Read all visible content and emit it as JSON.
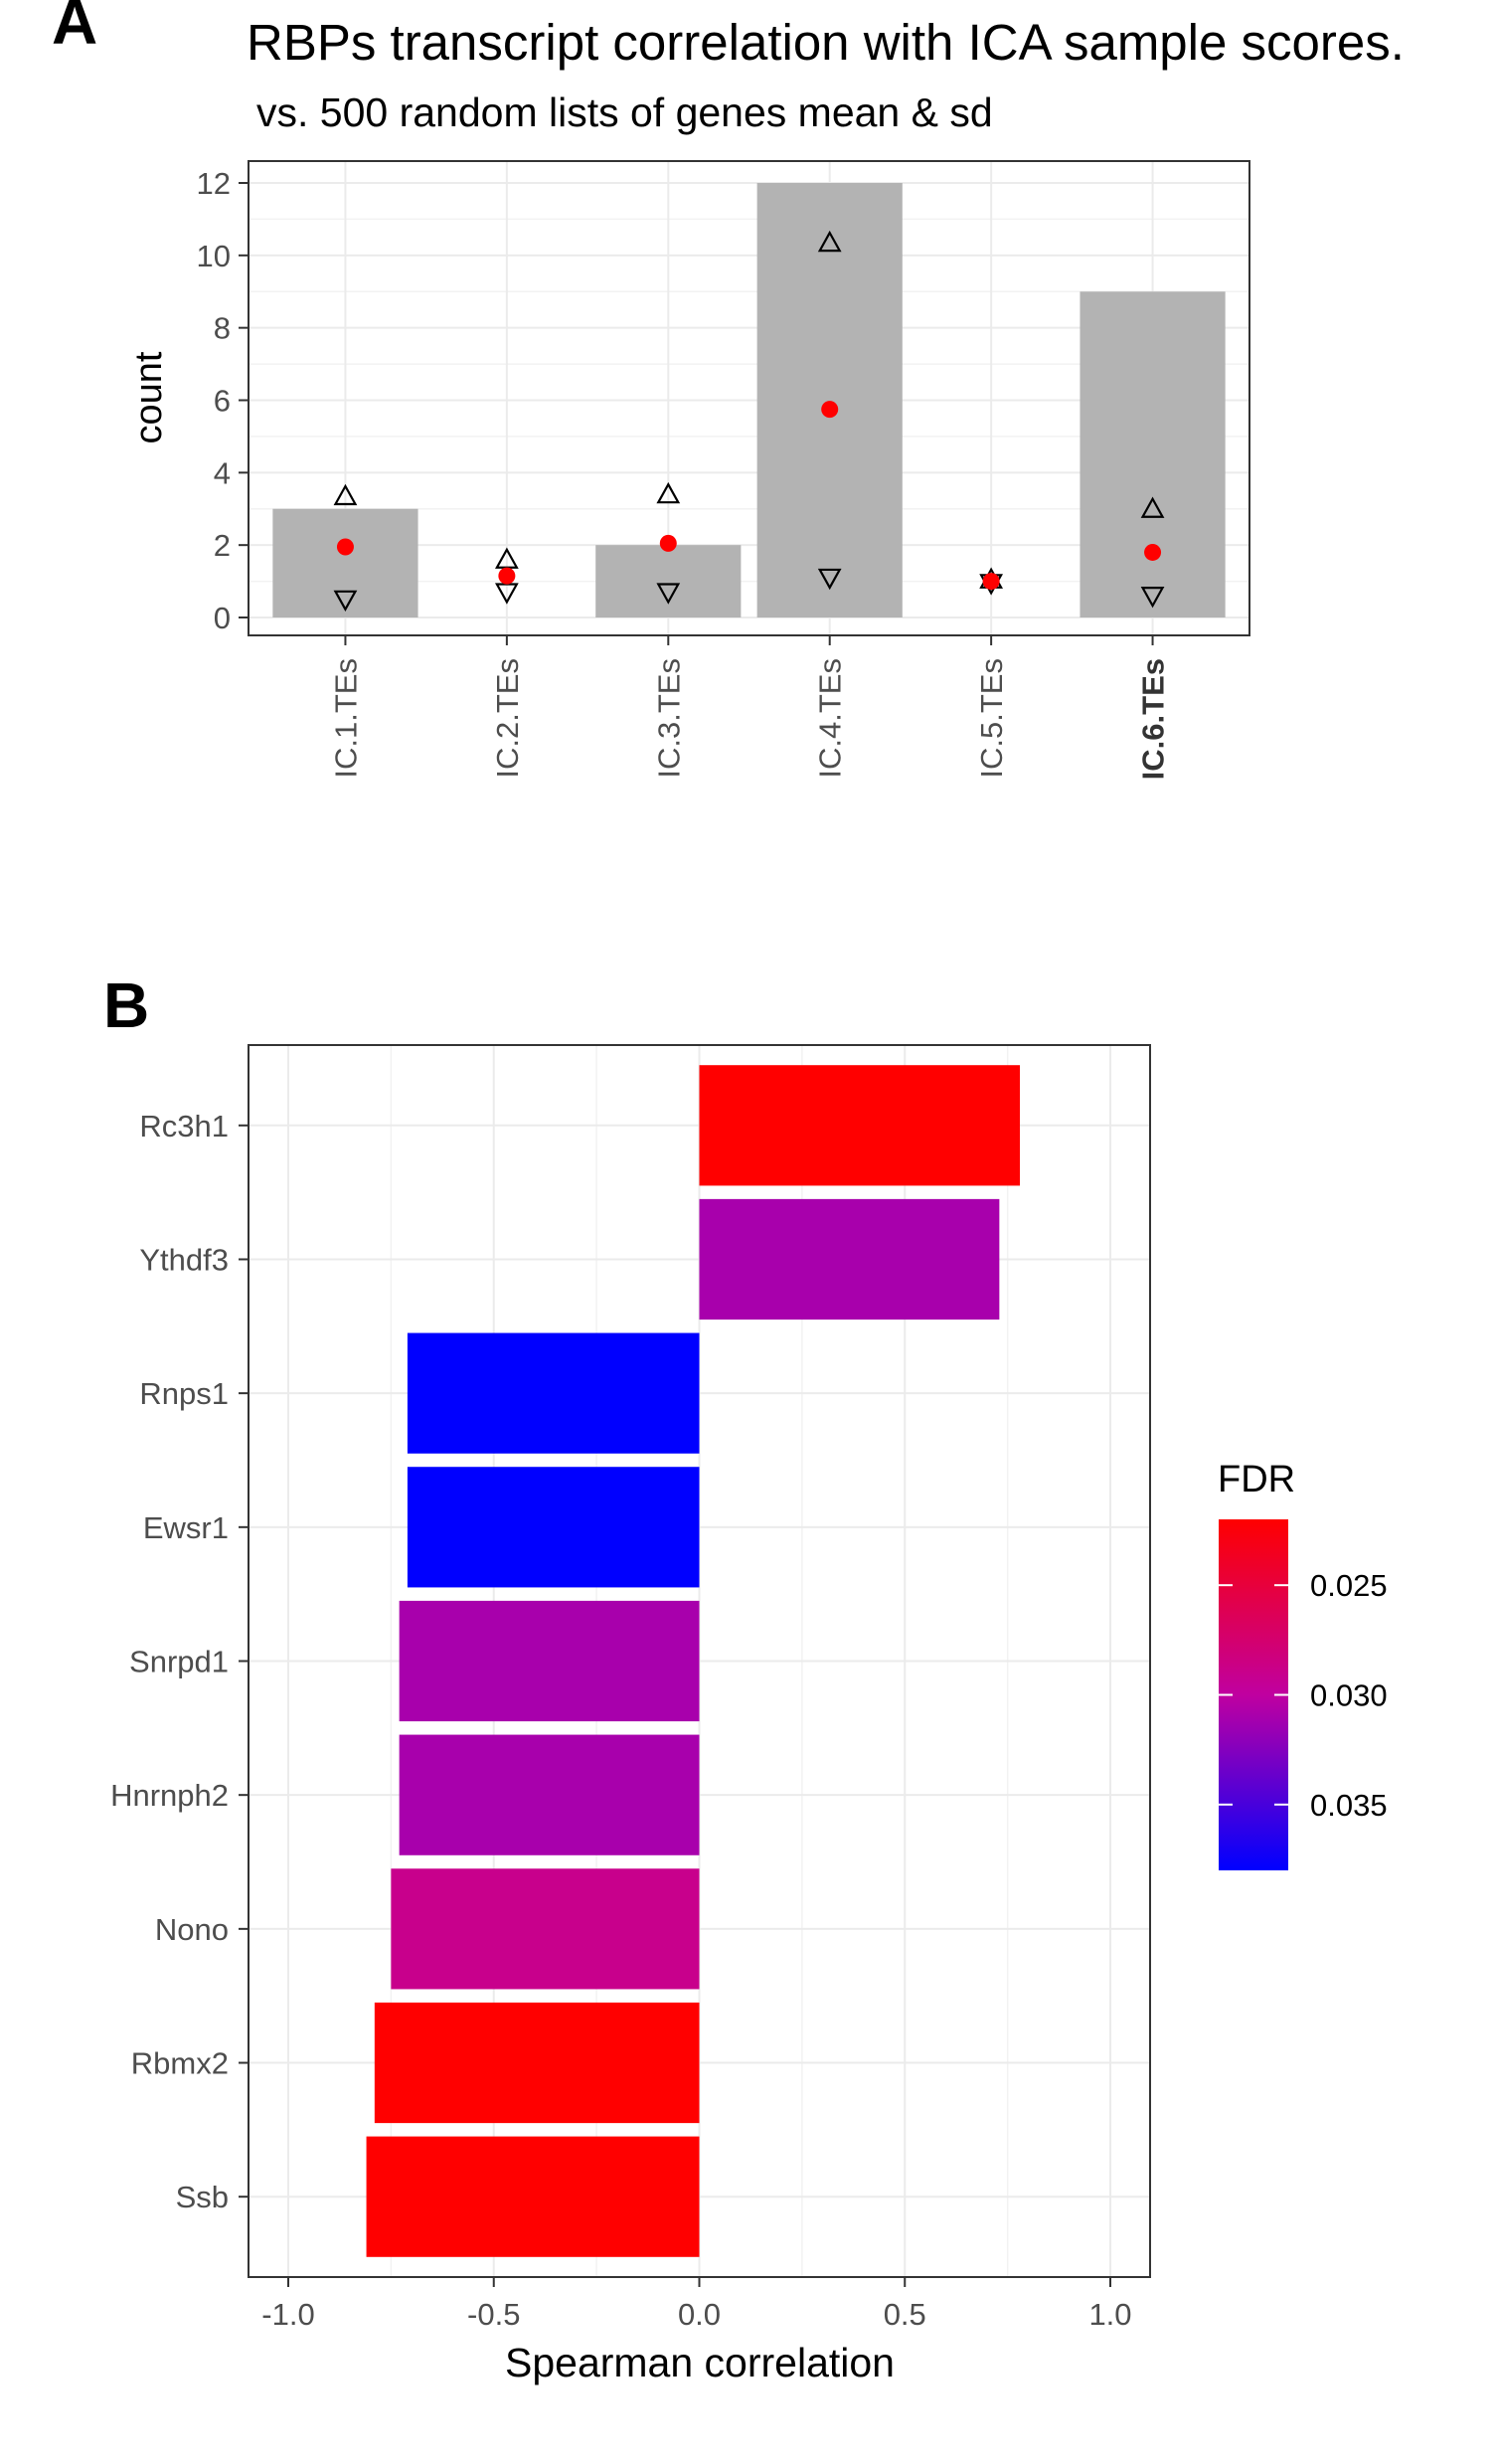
{
  "chart_data": [
    {
      "panel_label": "A",
      "type": "bar",
      "title": "RBPs transcript correlation with ICA sample scores.",
      "subtitle": "vs. 500 random lists of genes mean & sd",
      "xlabel": "",
      "ylabel": "count",
      "ylim": [
        0,
        12
      ],
      "yticks": [
        "0",
        "2",
        "4",
        "6",
        "8",
        "10",
        "12"
      ],
      "grid": true,
      "categories": [
        "IC.1.TEs",
        "IC.2.TEs",
        "IC.3.TEs",
        "IC.4.TEs",
        "IC.5.TEs",
        "IC.6.TEs"
      ],
      "bold_categories": [
        "IC.6.TEs"
      ],
      "values": [
        3,
        0,
        2,
        12,
        0,
        9
      ],
      "random_mean": [
        1.95,
        1.15,
        2.05,
        5.75,
        1.0,
        1.8
      ],
      "random_mean_plus_sd": [
        3.35,
        1.6,
        3.4,
        10.35,
        1.05,
        3.0
      ],
      "random_mean_minus_sd": [
        0.5,
        0.7,
        0.7,
        1.1,
        0.95,
        0.6
      ],
      "colors": {
        "bar": "#b3b3b3",
        "mean": "#ff0000",
        "sd_marker": "#000000"
      }
    },
    {
      "panel_label": "B",
      "type": "bar",
      "orientation": "horizontal",
      "xlabel": "Spearman correlation",
      "ylabel": "",
      "xlim": [
        -1.0,
        1.0
      ],
      "xticks": [
        "-1.0",
        "-0.5",
        "0.0",
        "0.5",
        "1.0"
      ],
      "grid": true,
      "categories": [
        "Rc3h1",
        "Ythdf3",
        "Rnps1",
        "Ewsr1",
        "Snrpd1",
        "Hnrnph2",
        "Nono",
        "Rbmx2",
        "Ssb"
      ],
      "values": [
        0.78,
        0.73,
        -0.71,
        -0.71,
        -0.73,
        -0.73,
        -0.75,
        -0.79,
        -0.81
      ],
      "fdr": [
        0.022,
        0.031,
        0.038,
        0.038,
        0.031,
        0.031,
        0.029,
        0.022,
        0.022
      ],
      "legend": {
        "title": "FDR",
        "ticks": [
          "0.025",
          "0.030",
          "0.035"
        ],
        "placement": "right",
        "range": [
          0.022,
          0.038
        ],
        "low_color": "#ff0000",
        "high_color": "#0000ff"
      }
    }
  ]
}
